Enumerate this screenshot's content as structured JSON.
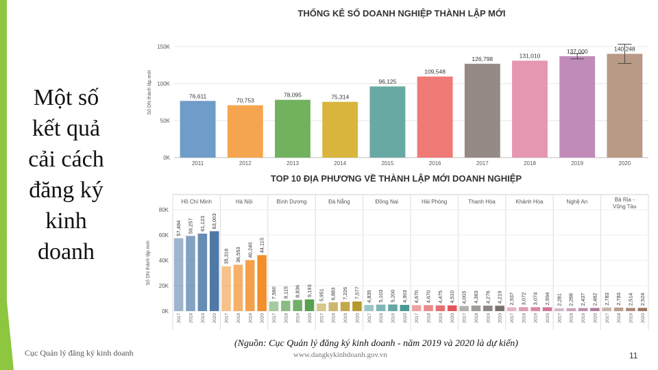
{
  "slide": {
    "title": "Một số kết quả cải cách đăng ký kinh doanh",
    "footer_left": "Cục Quản lý đăng ký kinh doanh",
    "source": "(Nguồn: Cục Quản lý đăng ký kinh doanh - năm 2019 và 2020 là dự kiến)",
    "website": "www.dangkykinhdoanh.gov.vn",
    "page_number": "11",
    "accent_color": "#8dc63f"
  },
  "chart_data": [
    {
      "type": "bar",
      "title": "THỐNG KÊ SỐ DOANH NGHIỆP THÀNH LẬP MỚI",
      "ylabel": "Số DN thành lập mới",
      "ylim": [
        0,
        150000
      ],
      "yticks": [
        0,
        50000,
        100000,
        150000
      ],
      "ytick_labels": [
        "0K",
        "50K",
        "100K",
        "150K"
      ],
      "categories": [
        "2011",
        "2012",
        "2013",
        "2014",
        "2015",
        "2016",
        "2017",
        "2018",
        "2019",
        "2020"
      ],
      "values": [
        76611,
        70753,
        78095,
        75314,
        96125,
        109548,
        126798,
        131010,
        137000,
        140248
      ],
      "value_labels": [
        "76,611",
        "70,753",
        "78,095",
        "75,314",
        "96,125",
        "109,548",
        "126,798",
        "131,010",
        "137,000",
        "140,248"
      ],
      "colors": [
        "#6f9cc9",
        "#f5a54f",
        "#72b25e",
        "#d9b53e",
        "#68aaa3",
        "#ef7a76",
        "#968a86",
        "#e597b2",
        "#c08bb9",
        "#b89a87"
      ],
      "error_bar_categories": [
        "2019",
        "2020"
      ],
      "error_bar_values": [
        7000,
        26000
      ]
    },
    {
      "type": "bar",
      "title": "TOP 10 ĐỊA PHƯƠNG VỀ THÀNH LẬP MỚI DOANH NGHIỆP",
      "ylabel": "Số DN thành lập mới",
      "ylim": [
        0,
        80000
      ],
      "yticks": [
        0,
        20000,
        40000,
        60000,
        80000
      ],
      "ytick_labels": [
        "0K",
        "20K",
        "40K",
        "60K",
        "80K"
      ],
      "years": [
        "2017",
        "2018",
        "2019",
        "2020"
      ],
      "series": [
        {
          "name": "Hồ Chí Minh",
          "color": "#4e79a7",
          "values": [
            57484,
            59257,
            61123,
            63003
          ],
          "value_labels": [
            "57,484",
            "59,257",
            "61,123",
            "63,003"
          ]
        },
        {
          "name": "Hà Nội",
          "color": "#f28e2b",
          "values": [
            35316,
            36553,
            40240,
            44115
          ],
          "value_labels": [
            "35,316",
            "36,553",
            "40,240",
            "44,115"
          ]
        },
        {
          "name": "Bình Dương",
          "color": "#59a14f",
          "values": [
            7560,
            8115,
            8836,
            9193
          ],
          "value_labels": [
            "7,560",
            "8,115",
            "8,836",
            "9,193"
          ]
        },
        {
          "name": "Đà Nẵng",
          "color": "#b6992d",
          "values": [
            5951,
            6883,
            7226,
            7577
          ],
          "value_labels": [
            "5,951",
            "6,883",
            "7,226",
            "7,577"
          ]
        },
        {
          "name": "Đồng Nai",
          "color": "#499894",
          "values": [
            4835,
            5103,
            5200,
            4903
          ],
          "value_labels": [
            "4,835",
            "5,103",
            "5,200",
            "4,903"
          ]
        },
        {
          "name": "Hải Phòng",
          "color": "#e15759",
          "values": [
            4670,
            4670,
            4475,
            4510
          ],
          "value_labels": [
            "4,670",
            "4,670",
            "4,475",
            "4,510"
          ]
        },
        {
          "name": "Thanh Hóa",
          "color": "#79706e",
          "values": [
            4003,
            4363,
            4276,
            4219
          ],
          "value_labels": [
            "4,003",
            "4,363",
            "4,276",
            "4,219"
          ]
        },
        {
          "name": "Khánh Hòa",
          "color": "#d37295",
          "values": [
            2937,
            3072,
            3074,
            2994
          ],
          "value_labels": [
            "2,937",
            "3,072",
            "3,074",
            "2,994"
          ]
        },
        {
          "name": "Nghệ An",
          "color": "#b07aa1",
          "values": [
            2281,
            2288,
            2437,
            2482
          ],
          "value_labels": [
            "2,281",
            "2,288",
            "2,437",
            "2,482"
          ]
        },
        {
          "name": "Bà Rịa - Vũng Tàu",
          "color": "#9d7660",
          "values": [
            2783,
            2783,
            2514,
            2524
          ],
          "value_labels": [
            "2,783",
            "2,783",
            "2,514",
            "2,524"
          ]
        }
      ]
    }
  ]
}
